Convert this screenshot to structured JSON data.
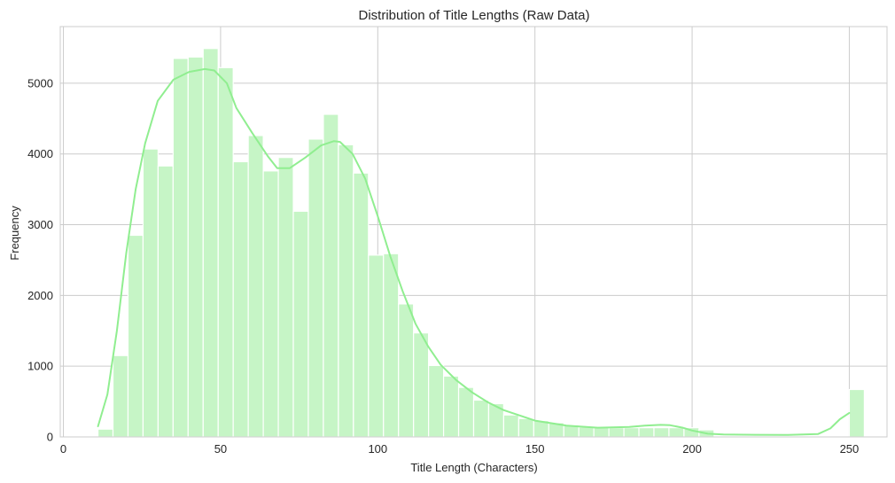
{
  "chart_data": {
    "type": "bar",
    "subtype": "histogram",
    "title": "Distribution of Title Lengths (Raw Data)",
    "xlabel": "Title Length (Characters)",
    "ylabel": "Frequency",
    "xlim": [
      -1,
      262
    ],
    "ylim": [
      0,
      5800
    ],
    "xticks": [
      0,
      50,
      100,
      150,
      200,
      250
    ],
    "yticks": [
      0,
      1000,
      2000,
      3000,
      4000,
      5000
    ],
    "grid": true,
    "colors": {
      "bar_fill": "#c6f5c6",
      "bar_edge": "#ffffff",
      "kde_line": "#90ee90",
      "grid": "#cccccc",
      "spine": "#cccccc"
    },
    "bins": {
      "start": 11,
      "width": 4.78,
      "counts": [
        110,
        1150,
        2850,
        4070,
        3830,
        5350,
        5370,
        5490,
        5220,
        3890,
        4260,
        3760,
        3950,
        3190,
        4210,
        4560,
        4130,
        3730,
        2570,
        2590,
        1880,
        1470,
        1010,
        860,
        700,
        520,
        470,
        310,
        260,
        230,
        200,
        170,
        140,
        140,
        130,
        130,
        130,
        130,
        130,
        130,
        100,
        0,
        0,
        0,
        0,
        0,
        0,
        0,
        0,
        0,
        670
      ]
    },
    "kde": {
      "x": [
        11,
        14,
        17,
        20,
        23,
        26,
        30,
        35,
        40,
        45,
        48,
        52,
        55,
        60,
        65,
        68,
        72,
        77,
        82,
        86,
        88,
        92,
        96,
        100,
        104,
        108,
        112,
        116,
        120,
        125,
        130,
        135,
        140,
        150,
        160,
        170,
        180,
        185,
        190,
        193,
        197,
        200,
        205,
        210,
        220,
        230,
        240,
        244,
        247,
        250
      ],
      "y": [
        150,
        600,
        1500,
        2600,
        3500,
        4150,
        4750,
        5050,
        5160,
        5200,
        5180,
        5000,
        4650,
        4300,
        3970,
        3800,
        3800,
        3950,
        4120,
        4180,
        4170,
        4000,
        3650,
        3120,
        2550,
        2050,
        1600,
        1280,
        1020,
        800,
        630,
        490,
        380,
        230,
        160,
        130,
        140,
        160,
        170,
        165,
        130,
        90,
        45,
        35,
        30,
        28,
        40,
        120,
        250,
        340
      ]
    }
  }
}
